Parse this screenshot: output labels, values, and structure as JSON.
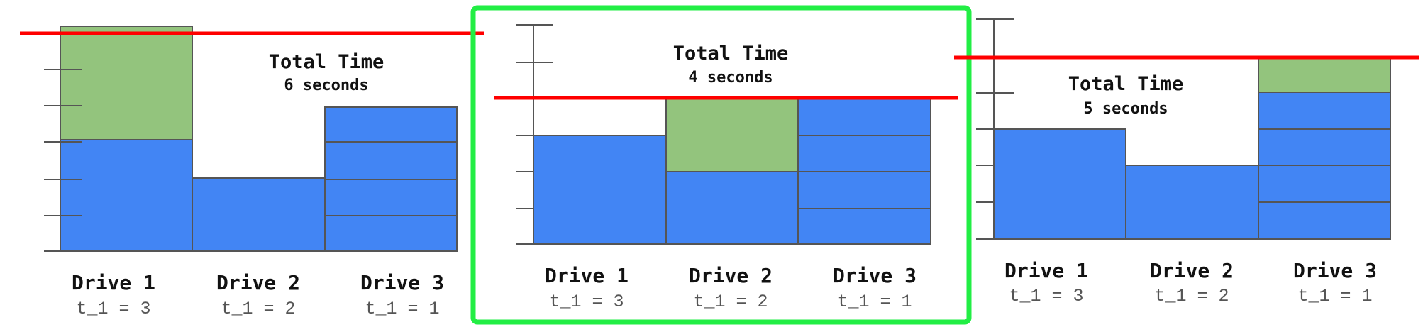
{
  "colors": {
    "blue": "#4285f4",
    "green": "#93c47d",
    "red": "#ff0000",
    "highlight": "#22ee44",
    "outline": "#555555"
  },
  "panels": [
    {
      "id": "six-seconds",
      "highlighted": false,
      "total_time_title": "Total Time",
      "total_time_value": "6 seconds",
      "max_line_units": 6,
      "drives": [
        {
          "name": "Drive 1",
          "t_label": "t_1 = 3",
          "blue_blocks": 3,
          "green_blocks": 3
        },
        {
          "name": "Drive 2",
          "t_label": "t_1 = 2",
          "blue_blocks": 2,
          "green_blocks": 0
        },
        {
          "name": "Drive 3",
          "t_label": "t_1 = 1",
          "blue_blocks": 4,
          "green_blocks": 0
        }
      ]
    },
    {
      "id": "four-seconds",
      "highlighted": true,
      "total_time_title": "Total Time",
      "total_time_value": "4 seconds",
      "max_line_units": 4,
      "drives": [
        {
          "name": "Drive 1",
          "t_label": "t_1 = 3",
          "blue_blocks": 3,
          "green_blocks": 0
        },
        {
          "name": "Drive 2",
          "t_label": "t_1 = 2",
          "blue_blocks": 2,
          "green_blocks": 2
        },
        {
          "name": "Drive 3",
          "t_label": "t_1 = 1",
          "blue_blocks": 4,
          "green_blocks": 0
        }
      ]
    },
    {
      "id": "five-seconds",
      "highlighted": false,
      "total_time_title": "Total Time",
      "total_time_value": "5 seconds",
      "max_line_units": 5,
      "drives": [
        {
          "name": "Drive 1",
          "t_label": "t_1 = 3",
          "blue_blocks": 3,
          "green_blocks": 0
        },
        {
          "name": "Drive 2",
          "t_label": "t_1 = 2",
          "blue_blocks": 2,
          "green_blocks": 0
        },
        {
          "name": "Drive 3",
          "t_label": "t_1 = 1",
          "blue_blocks": 4,
          "green_blocks": 1
        }
      ]
    }
  ]
}
